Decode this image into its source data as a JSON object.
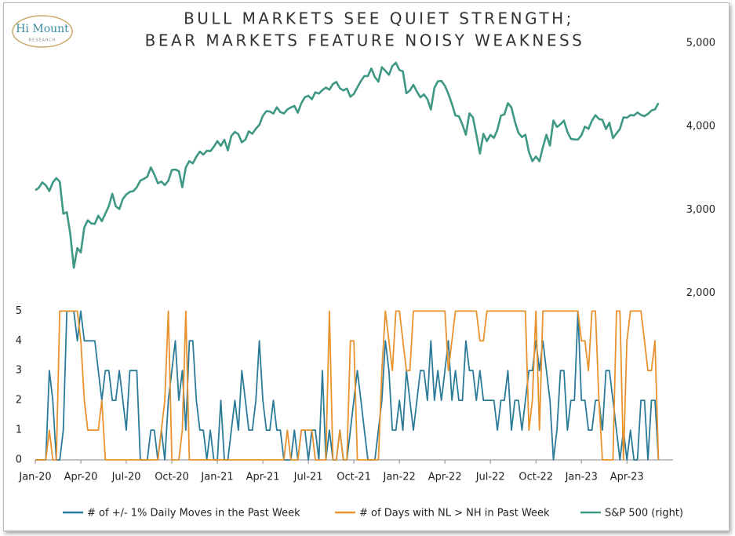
{
  "logo": {
    "name": "Hi Mount",
    "tagline": "RESEARCH"
  },
  "chart_data": {
    "type": "line",
    "title": [
      "BULL MARKETS SEE QUIET STRENGTH;",
      "BEAR MARKETS FEATURE NOISY WEAKNESS"
    ],
    "categories": [
      "Jan-20",
      null,
      null,
      null,
      null,
      null,
      null,
      null,
      null,
      null,
      null,
      null,
      null,
      "Apr-20",
      null,
      null,
      null,
      null,
      null,
      null,
      null,
      null,
      null,
      null,
      null,
      null,
      "Jul-20",
      null,
      null,
      null,
      null,
      null,
      null,
      null,
      null,
      null,
      null,
      null,
      null,
      "Oct-20",
      null,
      null,
      null,
      null,
      null,
      null,
      null,
      null,
      null,
      null,
      null,
      null,
      "Jan-21",
      null,
      null,
      null,
      null,
      null,
      null,
      null,
      null,
      null,
      null,
      null,
      null,
      "Apr-21",
      null,
      null,
      null,
      null,
      null,
      null,
      null,
      null,
      null,
      null,
      null,
      null,
      "Jul-21",
      null,
      null,
      null,
      null,
      null,
      null,
      null,
      null,
      null,
      null,
      null,
      null,
      "Oct-21",
      null,
      null,
      null,
      null,
      null,
      null,
      null,
      null,
      null,
      null,
      null,
      null,
      "Jan-22",
      null,
      null,
      null,
      null,
      null,
      null,
      null,
      null,
      null,
      null,
      null,
      null,
      "Apr-22",
      null,
      null,
      null,
      null,
      null,
      null,
      null,
      null,
      null,
      null,
      null,
      null,
      "Jul-22",
      null,
      null,
      null,
      null,
      null,
      null,
      null,
      null,
      null,
      null,
      null,
      null,
      "Oct-22",
      null,
      null,
      null,
      null,
      null,
      null,
      null,
      null,
      null,
      null,
      null,
      null,
      "Jan-23",
      null,
      null,
      null,
      null,
      null,
      null,
      null,
      null,
      null,
      null,
      null,
      null,
      "Apr-23",
      null,
      null,
      null,
      null,
      null,
      null,
      null,
      null,
      null
    ],
    "series": [
      {
        "name": "# of +/- 1% Daily Moves in the Past Week",
        "color": "#2b7b98",
        "values": [
          0,
          0,
          0,
          0,
          3,
          2,
          0,
          0,
          1,
          5,
          5,
          5,
          4,
          5,
          4,
          4,
          4,
          4,
          3,
          2,
          3,
          3,
          2,
          2,
          3,
          2,
          1,
          3,
          3,
          3,
          0,
          0,
          0,
          1,
          1,
          0,
          1,
          0,
          2,
          3,
          4,
          2,
          3,
          1,
          4,
          4,
          2,
          1,
          1,
          0,
          1,
          0,
          0,
          2,
          0,
          0,
          1,
          2,
          1,
          3,
          2,
          1,
          1,
          2,
          4,
          2,
          1,
          1,
          2,
          1,
          1,
          0,
          0,
          0,
          1,
          0,
          1,
          1,
          0,
          1,
          1,
          0,
          3,
          0,
          1,
          0,
          0,
          1,
          0,
          0,
          1,
          2,
          3,
          2,
          1,
          0,
          0,
          0,
          1,
          2,
          4,
          3,
          1,
          1,
          2,
          1,
          3,
          2,
          1,
          2,
          3,
          3,
          2,
          4,
          2,
          3,
          2,
          3,
          4,
          2,
          3,
          2,
          2,
          4,
          3,
          3,
          2,
          3,
          2,
          2,
          2,
          2,
          1,
          2,
          2,
          3,
          1,
          2,
          2,
          1,
          2,
          3,
          3,
          4,
          3,
          4,
          3,
          2,
          0,
          1,
          3,
          3,
          1,
          2,
          2,
          5,
          2,
          2,
          1,
          1,
          2,
          2,
          1,
          3,
          3,
          2,
          1,
          0,
          1,
          0,
          1,
          0,
          0,
          2,
          2,
          0,
          2,
          2,
          0
        ]
      },
      {
        "name": "# of Days with NL > NH in Past Week",
        "color": "#e8922e",
        "values": [
          0,
          0,
          0,
          0,
          1,
          0,
          0,
          5,
          5,
          5,
          5,
          5,
          5,
          4,
          2,
          1,
          1,
          1,
          1,
          2,
          0,
          0,
          0,
          0,
          0,
          0,
          0,
          0,
          0,
          0,
          0,
          0,
          0,
          0,
          0,
          0,
          1,
          2,
          5,
          0,
          0,
          0,
          1,
          5,
          0,
          0,
          0,
          0,
          0,
          0,
          0,
          0,
          0,
          0,
          0,
          0,
          0,
          0,
          0,
          0,
          0,
          0,
          0,
          0,
          0,
          0,
          0,
          0,
          0,
          0,
          0,
          0,
          1,
          0,
          0,
          0,
          1,
          1,
          1,
          1,
          0,
          0,
          0,
          0,
          5,
          0,
          0,
          1,
          0,
          0,
          4,
          4,
          0,
          0,
          0,
          0,
          0,
          0,
          0,
          3,
          5,
          4,
          3,
          5,
          5,
          4,
          3,
          3,
          5,
          5,
          5,
          5,
          5,
          5,
          5,
          5,
          5,
          5,
          3,
          4,
          5,
          5,
          5,
          5,
          5,
          5,
          5,
          4,
          4,
          5,
          5,
          5,
          5,
          5,
          5,
          5,
          5,
          5,
          5,
          5,
          5,
          1,
          2,
          5,
          1,
          5,
          5,
          5,
          5,
          5,
          5,
          5,
          5,
          5,
          5,
          5,
          4,
          4,
          3,
          5,
          5,
          2,
          0,
          0,
          0,
          0,
          5,
          5,
          0,
          4,
          5,
          5,
          5,
          5,
          4,
          3,
          3,
          4,
          0
        ]
      },
      {
        "name": "S&P 500 (right)",
        "color": "#3e9883",
        "axis": "y2",
        "values": [
          3235,
          3265,
          3330,
          3295,
          3225,
          3328,
          3380,
          3338,
          2954,
          2972,
          2711,
          2305,
          2541,
          2489,
          2790,
          2875,
          2837,
          2831,
          2930,
          2864,
          2955,
          3044,
          3193,
          3042,
          3009,
          3130,
          3185,
          3216,
          3225,
          3271,
          3351,
          3372,
          3397,
          3509,
          3426,
          3319,
          3340,
          3298,
          3348,
          3478,
          3484,
          3465,
          3270,
          3510,
          3585,
          3557,
          3638,
          3700,
          3663,
          3709,
          3703,
          3756,
          3825,
          3768,
          3841,
          3714,
          3887,
          3935,
          3907,
          3811,
          3842,
          3943,
          3913,
          3974,
          4020,
          4128,
          4185,
          4180,
          4155,
          4232,
          4173,
          4156,
          4204,
          4229,
          4247,
          4166,
          4281,
          4352,
          4369,
          4327,
          4411,
          4395,
          4437,
          4468,
          4442,
          4509,
          4535,
          4459,
          4433,
          4455,
          4357,
          4391,
          4471,
          4545,
          4605,
          4605,
          4697,
          4594,
          4538,
          4712,
          4669,
          4620,
          4725,
          4766,
          4677,
          4662,
          4398,
          4432,
          4500,
          4418,
          4349,
          4385,
          4328,
          4204,
          4463,
          4543,
          4546,
          4488,
          4392,
          4271,
          4132,
          4123,
          4023,
          3901,
          4158,
          4109,
          3901,
          3675,
          3912,
          3825,
          3899,
          3863,
          3962,
          4131,
          4145,
          4280,
          4228,
          4058,
          3924,
          3873,
          3901,
          3693,
          3585,
          3640,
          3583,
          3752,
          3901,
          3770,
          4072,
          3993,
          4026,
          4072,
          3934,
          3852,
          3845,
          3844,
          3895,
          3999,
          3972,
          4070,
          4136,
          4090,
          4079,
          3970,
          4045,
          3862,
          3917,
          3971,
          4109,
          4105,
          4137,
          4133,
          4169,
          4138,
          4124,
          4151,
          4192,
          4205,
          4282
        ]
      }
    ],
    "ylim": [
      0,
      14
    ],
    "yticks": [
      0,
      1,
      2,
      3,
      4,
      5
    ],
    "y2lim": [
      0,
      5000
    ],
    "y2ticks": [
      {
        "value": 2000,
        "label": "2,000"
      },
      {
        "value": 3000,
        "label": "3,000"
      },
      {
        "value": 4000,
        "label": "4,000"
      },
      {
        "value": 5000,
        "label": "5,000"
      }
    ],
    "legend": "bottom",
    "grid": false
  }
}
